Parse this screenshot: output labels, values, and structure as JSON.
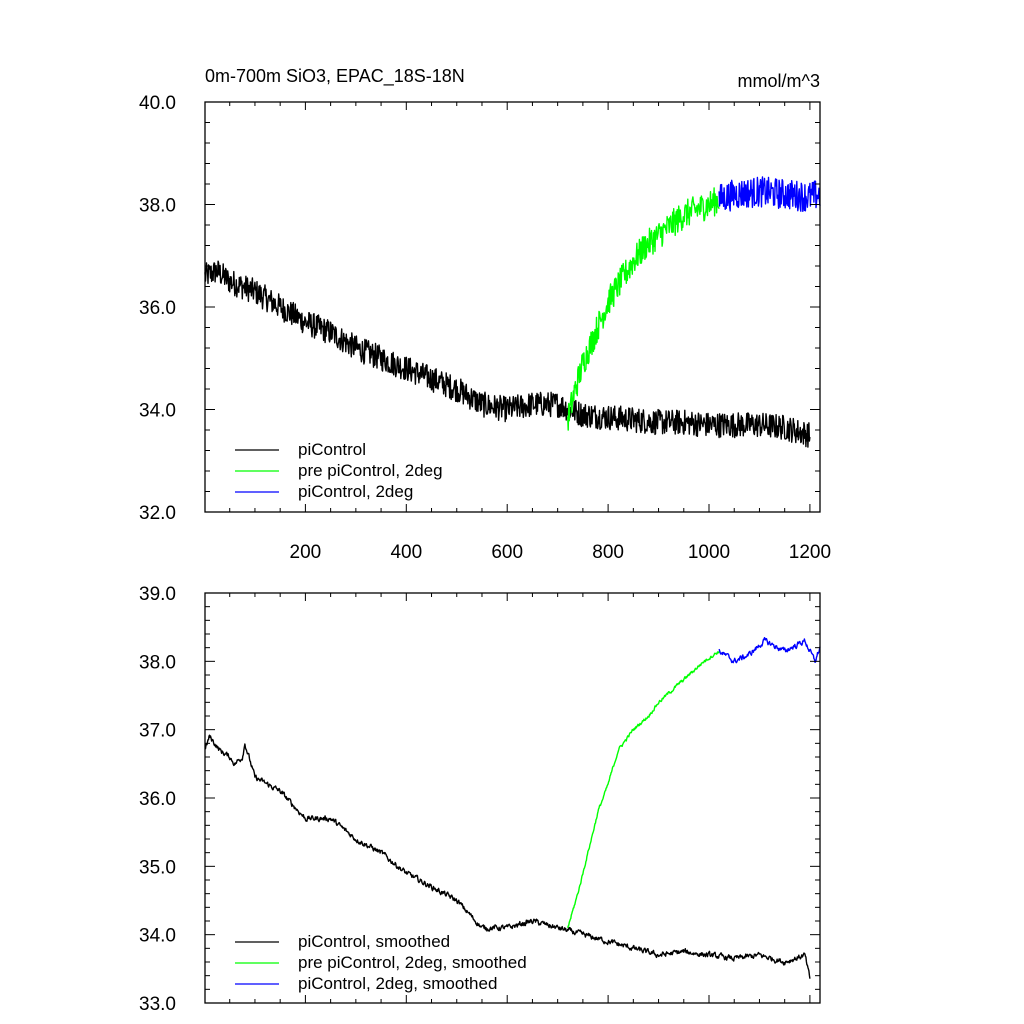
{
  "chart_data": [
    {
      "type": "line",
      "title": "0m-700m SiO3, EPAC_18S-18N",
      "units": "mmol/m^3",
      "xlim": [
        1,
        1220
      ],
      "ylim": [
        32.0,
        40.0
      ],
      "x_ticks": [
        200,
        400,
        600,
        800,
        1000,
        1200
      ],
      "x_tick_labels": [
        "200",
        "400",
        "600",
        "800",
        "1000",
        "1200"
      ],
      "y_ticks": [
        32.0,
        34.0,
        36.0,
        38.0,
        40.0
      ],
      "y_tick_labels": [
        "32.0",
        "34.0",
        "36.0",
        "38.0",
        "40.0"
      ],
      "legend_position": "bottom-left",
      "series": [
        {
          "name": "piControl",
          "color": "#000000",
          "x": [
            1,
            25,
            50,
            75,
            100,
            150,
            200,
            250,
            300,
            350,
            400,
            450,
            500,
            550,
            600,
            650,
            700,
            750,
            800,
            850,
            900,
            950,
            1000,
            1050,
            1100,
            1150,
            1200
          ],
          "y": [
            36.6,
            36.7,
            36.5,
            36.4,
            36.3,
            36.0,
            35.7,
            35.5,
            35.2,
            35.0,
            34.8,
            34.6,
            34.4,
            34.1,
            34.0,
            34.1,
            34.1,
            33.9,
            33.85,
            33.8,
            33.75,
            33.75,
            33.7,
            33.7,
            33.7,
            33.65,
            33.5
          ],
          "noise": 0.25
        },
        {
          "name": "pre piControl, 2deg",
          "color": "#00ff00",
          "x": [
            720,
            735,
            750,
            775,
            800,
            825,
            850,
            875,
            900,
            925,
            950,
            975,
            1000,
            1020
          ],
          "y": [
            33.8,
            34.4,
            34.9,
            35.5,
            36.1,
            36.5,
            36.9,
            37.2,
            37.4,
            37.6,
            37.8,
            37.9,
            38.0,
            38.1
          ],
          "noise": 0.28
        },
        {
          "name": "piControl, 2deg",
          "color": "#0000ff",
          "x": [
            1020,
            1050,
            1100,
            1150,
            1200,
            1220
          ],
          "y": [
            38.1,
            38.2,
            38.25,
            38.2,
            38.15,
            38.2
          ],
          "noise": 0.3
        }
      ]
    },
    {
      "type": "line",
      "xlim": [
        1,
        1220
      ],
      "ylim": [
        33.0,
        39.0
      ],
      "x_ticks": [
        200,
        400,
        600,
        800,
        1000,
        1200
      ],
      "y_ticks": [
        33.0,
        34.0,
        35.0,
        36.0,
        37.0,
        38.0,
        39.0
      ],
      "y_tick_labels": [
        "33.0",
        "34.0",
        "35.0",
        "36.0",
        "37.0",
        "38.0",
        "39.0"
      ],
      "legend_position": "bottom-left",
      "series": [
        {
          "name": "piControl, smoothed",
          "color": "#000000",
          "x": [
            1,
            10,
            30,
            50,
            60,
            75,
            80,
            100,
            150,
            200,
            250,
            300,
            350,
            400,
            450,
            500,
            550,
            600,
            650,
            700,
            750,
            800,
            850,
            900,
            950,
            1000,
            1050,
            1100,
            1150,
            1190,
            1200
          ],
          "y": [
            36.7,
            36.9,
            36.7,
            36.6,
            36.5,
            36.6,
            36.8,
            36.3,
            36.1,
            35.7,
            35.7,
            35.4,
            35.2,
            34.9,
            34.7,
            34.5,
            34.1,
            34.1,
            34.2,
            34.1,
            34.0,
            33.9,
            33.8,
            33.7,
            33.75,
            33.7,
            33.65,
            33.7,
            33.6,
            33.7,
            33.35
          ],
          "noise": 0.08
        },
        {
          "name": "pre piControl, 2deg, smoothed",
          "color": "#00ff00",
          "x": [
            720,
            740,
            760,
            780,
            800,
            820,
            850,
            880,
            900,
            930,
            960,
            990,
            1010,
            1020
          ],
          "y": [
            34.1,
            34.6,
            35.2,
            35.8,
            36.2,
            36.7,
            37.0,
            37.2,
            37.4,
            37.6,
            37.8,
            38.0,
            38.1,
            38.15
          ],
          "noise": 0.05
        },
        {
          "name": "piControl, 2deg, smoothed",
          "color": "#0000ff",
          "x": [
            1020,
            1050,
            1080,
            1110,
            1150,
            1190,
            1210,
            1220
          ],
          "y": [
            38.15,
            38.0,
            38.1,
            38.3,
            38.15,
            38.3,
            38.0,
            38.2
          ],
          "noise": 0.08
        }
      ]
    }
  ]
}
